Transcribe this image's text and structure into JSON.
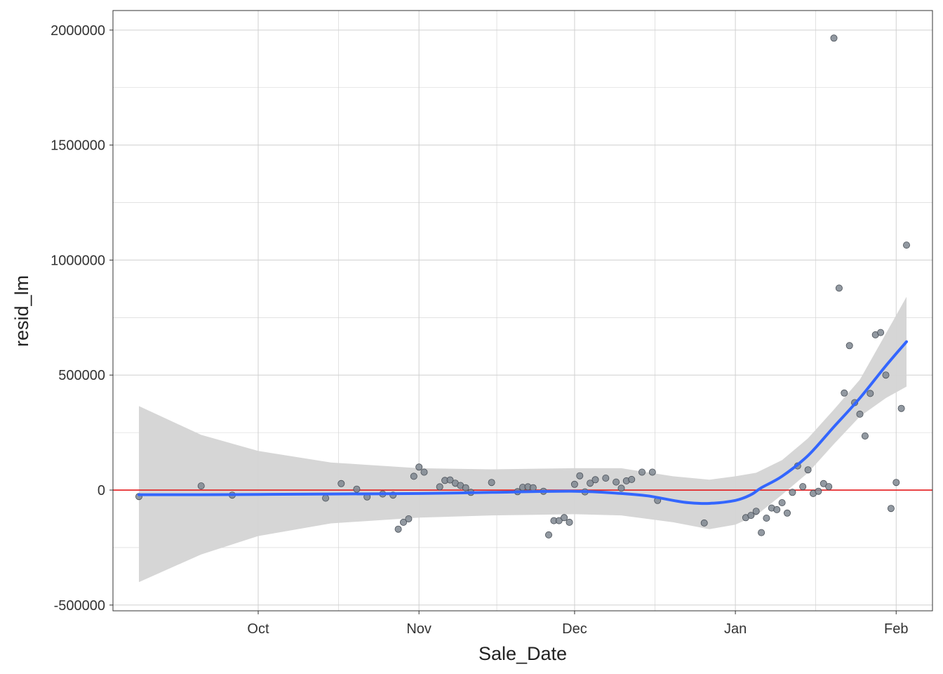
{
  "chart_data": {
    "type": "scatter",
    "title": "",
    "xlabel": "Sale_Date",
    "ylabel": "resid_lm",
    "x_type": "date",
    "xlim": [
      "2022-09-03",
      "2023-02-08"
    ],
    "ylim": [
      -525000,
      2085000
    ],
    "x_ticks": [
      {
        "label": "Oct",
        "value": "2022-10-01"
      },
      {
        "label": "Nov",
        "value": "2022-11-01"
      },
      {
        "label": "Dec",
        "value": "2022-12-01"
      },
      {
        "label": "Jan",
        "value": "2023-01-01"
      },
      {
        "label": "Feb",
        "value": "2023-02-01"
      }
    ],
    "y_ticks": [
      {
        "label": "2000000",
        "value": 2000000
      },
      {
        "label": "1500000",
        "value": 1500000
      },
      {
        "label": "1000000",
        "value": 1000000
      },
      {
        "label": "500000",
        "value": 500000
      },
      {
        "label": "0",
        "value": 0
      },
      {
        "label": "-500000",
        "value": -500000
      }
    ],
    "grid": true,
    "reference_line": {
      "y": 0,
      "color": "#e41a1c"
    },
    "colors": {
      "points": "#7f8790",
      "smooth": "#3366ff",
      "ribbon": "#d4d4d4",
      "grid": "#d0d0d0",
      "panel_border": "#333333"
    },
    "series": [
      {
        "kind": "points",
        "points": [
          [
            "2022-09-08",
            -28000
          ],
          [
            "2022-09-20",
            18000
          ],
          [
            "2022-09-26",
            -22000
          ],
          [
            "2022-10-14",
            -35000
          ],
          [
            "2022-10-17",
            28000
          ],
          [
            "2022-10-20",
            4000
          ],
          [
            "2022-10-22",
            -30000
          ],
          [
            "2022-10-25",
            -17000
          ],
          [
            "2022-10-27",
            -22000
          ],
          [
            "2022-10-28",
            -170000
          ],
          [
            "2022-10-29",
            -140000
          ],
          [
            "2022-10-30",
            -125000
          ],
          [
            "2022-10-31",
            60000
          ],
          [
            "2022-11-01",
            100000
          ],
          [
            "2022-11-02",
            78000
          ],
          [
            "2022-11-05",
            14000
          ],
          [
            "2022-11-06",
            42000
          ],
          [
            "2022-11-07",
            44000
          ],
          [
            "2022-11-08",
            30000
          ],
          [
            "2022-11-09",
            20000
          ],
          [
            "2022-11-10",
            10000
          ],
          [
            "2022-11-11",
            -10000
          ],
          [
            "2022-11-15",
            33000
          ],
          [
            "2022-11-20",
            -7000
          ],
          [
            "2022-11-21",
            12000
          ],
          [
            "2022-11-22",
            14000
          ],
          [
            "2022-11-23",
            10000
          ],
          [
            "2022-11-25",
            -5000
          ],
          [
            "2022-11-26",
            -195000
          ],
          [
            "2022-11-27",
            -133000
          ],
          [
            "2022-11-28",
            -133000
          ],
          [
            "2022-11-29",
            -120000
          ],
          [
            "2022-11-30",
            -140000
          ],
          [
            "2022-12-01",
            25000
          ],
          [
            "2022-12-02",
            62000
          ],
          [
            "2022-12-03",
            -8000
          ],
          [
            "2022-12-04",
            30000
          ],
          [
            "2022-12-05",
            45000
          ],
          [
            "2022-12-07",
            52000
          ],
          [
            "2022-12-09",
            35000
          ],
          [
            "2022-12-10",
            8000
          ],
          [
            "2022-12-11",
            40000
          ],
          [
            "2022-12-12",
            46000
          ],
          [
            "2022-12-14",
            78000
          ],
          [
            "2022-12-16",
            78000
          ],
          [
            "2022-12-17",
            -45000
          ],
          [
            "2022-12-26",
            -143000
          ],
          [
            "2023-01-03",
            -120000
          ],
          [
            "2023-01-04",
            -110000
          ],
          [
            "2023-01-05",
            -92000
          ],
          [
            "2023-01-06",
            -185000
          ],
          [
            "2023-01-07",
            -122000
          ],
          [
            "2023-01-08",
            -78000
          ],
          [
            "2023-01-09",
            -85000
          ],
          [
            "2023-01-10",
            -55000
          ],
          [
            "2023-01-11",
            -100000
          ],
          [
            "2023-01-12",
            -10000
          ],
          [
            "2023-01-13",
            105000
          ],
          [
            "2023-01-14",
            15000
          ],
          [
            "2023-01-15",
            88000
          ],
          [
            "2023-01-16",
            -15000
          ],
          [
            "2023-01-17",
            -5000
          ],
          [
            "2023-01-18",
            28000
          ],
          [
            "2023-01-19",
            15000
          ],
          [
            "2023-01-20",
            1965000
          ],
          [
            "2023-01-21",
            878000
          ],
          [
            "2023-01-22",
            422000
          ],
          [
            "2023-01-23",
            628000
          ],
          [
            "2023-01-24",
            380000
          ],
          [
            "2023-01-25",
            330000
          ],
          [
            "2023-01-26",
            235000
          ],
          [
            "2023-01-27",
            420000
          ],
          [
            "2023-01-28",
            675000
          ],
          [
            "2023-01-29",
            685000
          ],
          [
            "2023-01-30",
            500000
          ],
          [
            "2023-01-31",
            -80000
          ],
          [
            "2023-02-01",
            33000
          ],
          [
            "2023-02-02",
            355000
          ],
          [
            "2023-02-03",
            1065000
          ]
        ]
      },
      {
        "kind": "smooth",
        "points": [
          [
            "2022-09-08",
            -20000
          ],
          [
            "2022-09-20",
            -20000
          ],
          [
            "2022-10-01",
            -19000
          ],
          [
            "2022-10-15",
            -17000
          ],
          [
            "2022-11-01",
            -15000
          ],
          [
            "2022-11-15",
            -10000
          ],
          [
            "2022-12-01",
            -5000
          ],
          [
            "2022-12-10",
            -15000
          ],
          [
            "2022-12-15",
            -25000
          ],
          [
            "2022-12-20",
            -45000
          ],
          [
            "2022-12-23",
            -55000
          ],
          [
            "2022-12-27",
            -58000
          ],
          [
            "2023-01-01",
            -45000
          ],
          [
            "2023-01-04",
            -20000
          ],
          [
            "2023-01-06",
            10000
          ],
          [
            "2023-01-10",
            60000
          ],
          [
            "2023-01-15",
            150000
          ],
          [
            "2023-01-20",
            275000
          ],
          [
            "2023-01-25",
            400000
          ],
          [
            "2023-01-30",
            540000
          ],
          [
            "2023-02-03",
            645000
          ]
        ]
      },
      {
        "kind": "ribbon",
        "points": [
          [
            "2022-09-08",
            365000,
            -400000
          ],
          [
            "2022-09-20",
            240000,
            -280000
          ],
          [
            "2022-10-01",
            170000,
            -200000
          ],
          [
            "2022-10-15",
            120000,
            -145000
          ],
          [
            "2022-11-01",
            95000,
            -120000
          ],
          [
            "2022-11-15",
            90000,
            -110000
          ],
          [
            "2022-12-01",
            95000,
            -105000
          ],
          [
            "2022-12-10",
            95000,
            -110000
          ],
          [
            "2022-12-20",
            60000,
            -140000
          ],
          [
            "2022-12-27",
            45000,
            -170000
          ],
          [
            "2023-01-01",
            60000,
            -150000
          ],
          [
            "2023-01-05",
            75000,
            -110000
          ],
          [
            "2023-01-10",
            130000,
            -20000
          ],
          [
            "2023-01-15",
            225000,
            75000
          ],
          [
            "2023-01-20",
            350000,
            200000
          ],
          [
            "2023-01-25",
            480000,
            320000
          ],
          [
            "2023-01-30",
            680000,
            400000
          ],
          [
            "2023-02-03",
            840000,
            450000
          ]
        ]
      }
    ]
  }
}
